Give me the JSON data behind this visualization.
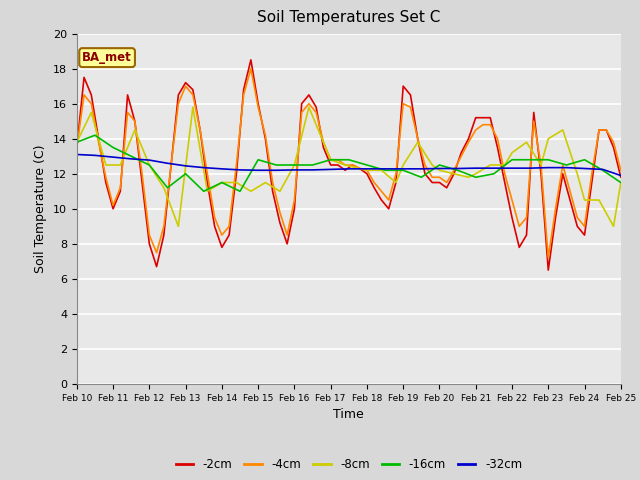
{
  "title": "Soil Temperatures Set C",
  "xlabel": "Time",
  "ylabel": "Soil Temperature (C)",
  "annotation": "BA_met",
  "ylim": [
    0,
    20
  ],
  "background_color": "#e8e8e8",
  "grid_color": "#ffffff",
  "xtick_labels": [
    "Feb 10",
    "Feb 11",
    "Feb 12",
    "Feb 13",
    "Feb 14",
    "Feb 15",
    "Feb 16",
    "Feb 17",
    "Feb 18",
    "Feb 19",
    "Feb 20",
    "Feb 21",
    "Feb 22",
    "Feb 23",
    "Feb 24",
    "Feb 25"
  ],
  "ytick_values": [
    0,
    2,
    4,
    6,
    8,
    10,
    12,
    14,
    16,
    18,
    20
  ],
  "series": {
    "-2cm": {
      "color": "#dd0000",
      "x": [
        0,
        0.2,
        0.4,
        0.6,
        0.8,
        1.0,
        1.2,
        1.4,
        1.6,
        1.8,
        2.0,
        2.2,
        2.4,
        2.6,
        2.8,
        3.0,
        3.2,
        3.4,
        3.6,
        3.8,
        4.0,
        4.2,
        4.4,
        4.6,
        4.8,
        5.0,
        5.2,
        5.4,
        5.6,
        5.8,
        6.0,
        6.2,
        6.4,
        6.6,
        6.8,
        7.0,
        7.2,
        7.4,
        7.6,
        7.8,
        8.0,
        8.2,
        8.4,
        8.6,
        8.8,
        9.0,
        9.2,
        9.4,
        9.6,
        9.8,
        10.0,
        10.2,
        10.4,
        10.6,
        10.8,
        11.0,
        11.2,
        11.4,
        11.6,
        11.8,
        12.0,
        12.2,
        12.4,
        12.6,
        12.8,
        13.0,
        13.2,
        13.4,
        13.6,
        13.8,
        14.0,
        14.2,
        14.4,
        14.6,
        14.8,
        15.0
      ],
      "y": [
        13.5,
        17.5,
        16.5,
        14.0,
        11.5,
        10.0,
        11.0,
        16.5,
        15.0,
        11.5,
        8.0,
        6.7,
        8.5,
        12.5,
        16.5,
        17.2,
        16.8,
        14.5,
        11.5,
        9.0,
        7.8,
        8.5,
        12.0,
        16.8,
        18.5,
        16.0,
        14.0,
        11.0,
        9.2,
        8.0,
        10.0,
        16.0,
        16.5,
        15.8,
        13.5,
        12.5,
        12.5,
        12.2,
        12.5,
        12.3,
        12.0,
        11.2,
        10.5,
        10.0,
        11.5,
        17.0,
        16.5,
        14.0,
        12.0,
        11.5,
        11.5,
        11.2,
        12.0,
        13.2,
        14.0,
        15.2,
        15.2,
        15.2,
        13.5,
        11.5,
        9.5,
        7.8,
        8.5,
        15.5,
        12.0,
        6.5,
        9.5,
        12.0,
        10.5,
        9.0,
        8.5,
        11.5,
        14.5,
        14.5,
        13.5,
        11.8
      ]
    },
    "-4cm": {
      "color": "#ff8800",
      "x": [
        0,
        0.2,
        0.4,
        0.6,
        0.8,
        1.0,
        1.2,
        1.4,
        1.6,
        1.8,
        2.0,
        2.2,
        2.4,
        2.6,
        2.8,
        3.0,
        3.2,
        3.4,
        3.6,
        3.8,
        4.0,
        4.2,
        4.4,
        4.6,
        4.8,
        5.0,
        5.2,
        5.4,
        5.6,
        5.8,
        6.0,
        6.2,
        6.4,
        6.6,
        6.8,
        7.0,
        7.2,
        7.4,
        7.6,
        7.8,
        8.0,
        8.2,
        8.4,
        8.6,
        8.8,
        9.0,
        9.2,
        9.4,
        9.6,
        9.8,
        10.0,
        10.2,
        10.4,
        10.6,
        10.8,
        11.0,
        11.2,
        11.4,
        11.6,
        11.8,
        12.0,
        12.2,
        12.4,
        12.6,
        12.8,
        13.0,
        13.2,
        13.4,
        13.6,
        13.8,
        14.0,
        14.2,
        14.4,
        14.6,
        14.8,
        15.0
      ],
      "y": [
        13.5,
        16.5,
        16.0,
        13.8,
        11.8,
        10.2,
        11.2,
        15.5,
        15.0,
        12.0,
        8.5,
        7.5,
        9.0,
        12.5,
        16.0,
        17.0,
        16.5,
        14.5,
        12.0,
        9.5,
        8.5,
        9.0,
        12.5,
        16.5,
        18.0,
        15.8,
        14.2,
        11.5,
        9.8,
        8.5,
        10.5,
        15.5,
        16.0,
        15.5,
        13.8,
        12.8,
        12.8,
        12.5,
        12.5,
        12.3,
        12.2,
        11.5,
        11.0,
        10.5,
        12.0,
        16.0,
        15.8,
        14.0,
        12.5,
        11.8,
        11.8,
        11.5,
        12.2,
        13.0,
        13.8,
        14.5,
        14.8,
        14.8,
        14.0,
        12.0,
        10.5,
        9.0,
        9.5,
        15.0,
        12.5,
        7.2,
        10.0,
        12.5,
        11.0,
        9.5,
        9.0,
        12.0,
        14.5,
        14.5,
        13.8,
        12.2
      ]
    },
    "-8cm": {
      "color": "#cccc00",
      "x": [
        0,
        0.4,
        0.8,
        1.2,
        1.6,
        2.0,
        2.4,
        2.8,
        3.2,
        3.6,
        4.0,
        4.4,
        4.8,
        5.2,
        5.6,
        6.0,
        6.4,
        6.8,
        7.0,
        7.4,
        7.8,
        8.0,
        8.4,
        8.8,
        9.0,
        9.4,
        9.8,
        10.0,
        10.4,
        10.8,
        11.0,
        11.4,
        11.8,
        12.0,
        12.4,
        12.8,
        13.0,
        13.4,
        13.8,
        14.0,
        14.4,
        14.8,
        15.0
      ],
      "y": [
        13.8,
        15.5,
        12.5,
        12.5,
        14.5,
        12.5,
        11.2,
        9.0,
        15.8,
        11.0,
        11.5,
        11.5,
        11.0,
        11.5,
        11.0,
        12.5,
        15.8,
        13.8,
        12.8,
        12.5,
        12.3,
        12.2,
        12.2,
        11.5,
        12.5,
        13.8,
        12.5,
        12.2,
        12.0,
        11.8,
        12.0,
        12.5,
        12.5,
        13.2,
        13.8,
        12.5,
        14.0,
        14.5,
        12.0,
        10.5,
        10.5,
        9.0,
        11.5
      ]
    },
    "-16cm": {
      "color": "#00bb00",
      "x": [
        0,
        0.5,
        1.0,
        1.5,
        2.0,
        2.5,
        3.0,
        3.5,
        4.0,
        4.5,
        5.0,
        5.5,
        6.0,
        6.5,
        7.0,
        7.5,
        8.0,
        8.5,
        9.0,
        9.5,
        10.0,
        10.5,
        11.0,
        11.5,
        12.0,
        12.5,
        13.0,
        13.5,
        14.0,
        14.5,
        15.0
      ],
      "y": [
        13.8,
        14.2,
        13.5,
        13.0,
        12.5,
        11.2,
        12.0,
        11.0,
        11.5,
        11.0,
        12.8,
        12.5,
        12.5,
        12.5,
        12.8,
        12.8,
        12.5,
        12.2,
        12.2,
        11.8,
        12.5,
        12.2,
        11.8,
        12.0,
        12.8,
        12.8,
        12.8,
        12.5,
        12.8,
        12.2,
        11.5
      ]
    },
    "-32cm": {
      "color": "#0000cc",
      "x": [
        0,
        0.5,
        1.0,
        1.5,
        2.0,
        2.5,
        3.0,
        3.5,
        4.0,
        4.5,
        5.0,
        5.5,
        6.0,
        6.5,
        7.0,
        7.5,
        8.0,
        8.5,
        9.0,
        9.5,
        10.0,
        10.5,
        11.0,
        11.5,
        12.0,
        12.5,
        13.0,
        13.5,
        14.0,
        14.5,
        15.0
      ],
      "y": [
        13.1,
        13.05,
        12.95,
        12.85,
        12.78,
        12.6,
        12.45,
        12.35,
        12.28,
        12.22,
        12.2,
        12.2,
        12.22,
        12.22,
        12.25,
        12.28,
        12.28,
        12.28,
        12.28,
        12.28,
        12.3,
        12.3,
        12.32,
        12.32,
        12.32,
        12.32,
        12.35,
        12.35,
        12.3,
        12.25,
        11.9
      ]
    }
  }
}
